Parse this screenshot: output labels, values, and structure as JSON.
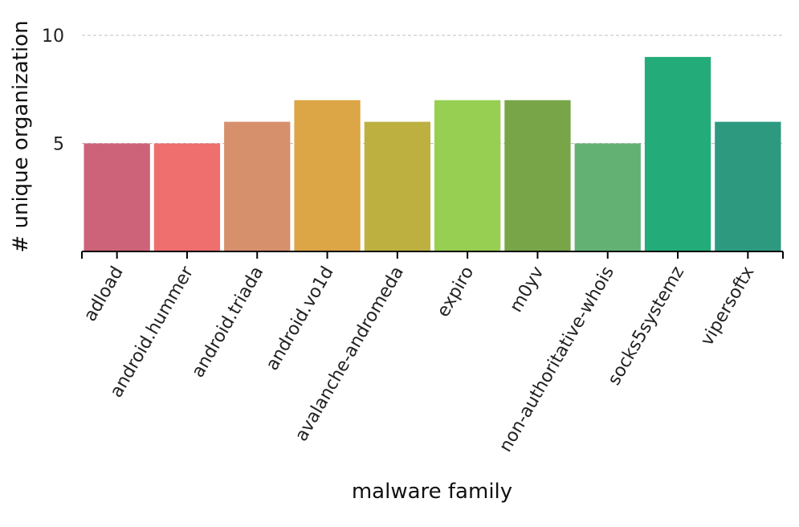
{
  "chart_data": {
    "type": "bar",
    "categories": [
      "adload",
      "android.hummer",
      "android.triada",
      "android.vo1d",
      "avalanche-andromeda",
      "expiro",
      "m0yv",
      "non-authoritative-whois",
      "socks5systemz",
      "vipersoftx"
    ],
    "values": [
      5,
      5,
      6,
      7,
      6,
      7,
      7,
      5,
      9,
      6
    ],
    "colors": [
      "#cd6378",
      "#ef6e6e",
      "#d6906c",
      "#dca545",
      "#bdb041",
      "#96cf51",
      "#78a547",
      "#63b274",
      "#23ac7a",
      "#2d9a80"
    ],
    "xlabel": "malware family",
    "ylabel": "# unique organization",
    "ylim": [
      0,
      10
    ],
    "yticks": [
      5,
      10
    ],
    "ytick_labels": [
      "5",
      "10"
    ],
    "grid": "y-dashed",
    "legend": "none"
  }
}
